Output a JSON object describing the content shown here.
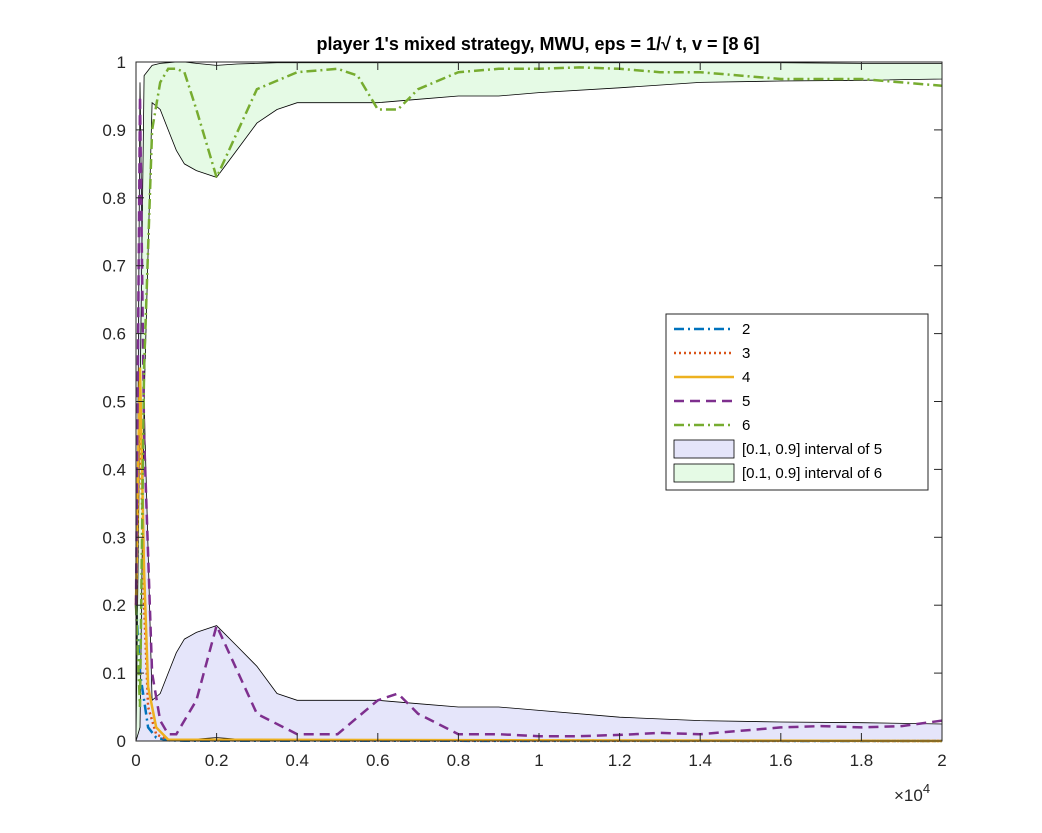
{
  "chart_data": {
    "type": "line",
    "title": "player 1's mixed strategy, MWU, eps = 1/√ t, v = [8  6]",
    "xlabel": "",
    "ylabel": "",
    "x_multiplier_label": "×10",
    "x_multiplier_exponent": "4",
    "xlim": [
      0,
      2
    ],
    "ylim": [
      0,
      1
    ],
    "xticks": [
      "0",
      "0.2",
      "0.4",
      "0.6",
      "0.8",
      "1",
      "1.2",
      "1.4",
      "1.6",
      "1.8",
      "2"
    ],
    "yticks": [
      "0",
      "0.1",
      "0.2",
      "0.3",
      "0.4",
      "0.5",
      "0.6",
      "0.7",
      "0.8",
      "0.9",
      "1"
    ],
    "legend_placement": "right",
    "legend": [
      {
        "label": "2",
        "style": "dash-dot",
        "color": "#0072BD"
      },
      {
        "label": "3",
        "style": "dotted",
        "color": "#D95319"
      },
      {
        "label": "4",
        "style": "solid",
        "color": "#EDB120"
      },
      {
        "label": "5",
        "style": "dashed",
        "color": "#7E2F8E"
      },
      {
        "label": "6",
        "style": "dash-dot",
        "color": "#77AC30"
      },
      {
        "label": "[0.1, 0.9] interval of 5",
        "style": "band",
        "color": "#E5E5FA"
      },
      {
        "label": "[0.1, 0.9] interval of 6",
        "style": "band",
        "color": "#E5FAE5"
      }
    ],
    "series": [
      {
        "label": "2",
        "color": "#0072BD",
        "x": [
          0,
          0.005,
          0.01,
          0.02,
          0.03,
          0.05,
          0.08,
          0.12,
          2.0
        ],
        "y": [
          0.2,
          0.15,
          0.1,
          0.06,
          0.02,
          0.005,
          0.001,
          0.0005,
          0.0
        ]
      },
      {
        "label": "3",
        "color": "#D95319",
        "x": [
          0,
          0.005,
          0.01,
          0.02,
          0.03,
          0.05,
          0.08,
          2.0
        ],
        "y": [
          0.2,
          0.35,
          0.5,
          0.2,
          0.05,
          0.01,
          0.001,
          0.0
        ]
      },
      {
        "label": "4",
        "color": "#EDB120",
        "x": [
          0,
          0.005,
          0.01,
          0.02,
          0.03,
          0.05,
          0.08,
          2.0
        ],
        "y": [
          0.2,
          0.4,
          0.55,
          0.25,
          0.08,
          0.02,
          0.002,
          0.0
        ]
      },
      {
        "label": "5",
        "color": "#7E2F8E",
        "x": [
          0,
          0.01,
          0.02,
          0.04,
          0.06,
          0.08,
          0.1,
          0.15,
          0.2,
          0.3,
          0.4,
          0.5,
          0.6,
          0.65,
          0.7,
          0.8,
          0.9,
          1.0,
          1.1,
          1.2,
          1.3,
          1.4,
          1.5,
          1.6,
          1.7,
          1.8,
          1.9,
          2.0
        ],
        "y": [
          0.2,
          0.95,
          0.45,
          0.1,
          0.03,
          0.01,
          0.01,
          0.06,
          0.17,
          0.04,
          0.01,
          0.01,
          0.06,
          0.07,
          0.04,
          0.01,
          0.01,
          0.007,
          0.007,
          0.009,
          0.012,
          0.01,
          0.015,
          0.02,
          0.022,
          0.02,
          0.022,
          0.03
        ]
      },
      {
        "label": "6",
        "color": "#77AC30",
        "x": [
          0,
          0.01,
          0.02,
          0.04,
          0.06,
          0.08,
          0.1,
          0.12,
          0.15,
          0.2,
          0.3,
          0.4,
          0.5,
          0.55,
          0.6,
          0.65,
          0.7,
          0.8,
          0.9,
          1.0,
          1.1,
          1.2,
          1.3,
          1.4,
          1.5,
          1.6,
          1.7,
          1.8,
          1.9,
          2.0
        ],
        "y": [
          0.2,
          0.05,
          0.55,
          0.9,
          0.97,
          0.99,
          0.99,
          0.985,
          0.93,
          0.83,
          0.96,
          0.985,
          0.99,
          0.98,
          0.93,
          0.93,
          0.96,
          0.985,
          0.99,
          0.99,
          0.992,
          0.99,
          0.985,
          0.985,
          0.98,
          0.975,
          0.975,
          0.975,
          0.97,
          0.965
        ]
      }
    ],
    "bands": [
      {
        "label": "[0.1, 0.9] interval of 5",
        "color": "#E5E5FA",
        "x": [
          0,
          0.01,
          0.02,
          0.04,
          0.06,
          0.08,
          0.1,
          0.12,
          0.15,
          0.2,
          0.25,
          0.3,
          0.35,
          0.4,
          0.5,
          0.6,
          0.7,
          0.8,
          0.9,
          1.0,
          1.2,
          1.4,
          1.6,
          1.8,
          2.0
        ],
        "lower": [
          0.0,
          0.0,
          0.0,
          0.0,
          0.0,
          0.0,
          0.001,
          0.002,
          0.003,
          0.005,
          0.003,
          0.002,
          0.001,
          0.001,
          0.001,
          0.001,
          0.001,
          0.001,
          0.001,
          0.001,
          0.001,
          0.001,
          0.001,
          0.001,
          0.001
        ],
        "upper": [
          0.0,
          0.97,
          0.5,
          0.06,
          0.07,
          0.1,
          0.13,
          0.15,
          0.16,
          0.17,
          0.14,
          0.11,
          0.07,
          0.06,
          0.06,
          0.06,
          0.055,
          0.05,
          0.05,
          0.045,
          0.035,
          0.03,
          0.028,
          0.027,
          0.025
        ]
      },
      {
        "label": "[0.1, 0.9] interval of 6",
        "color": "#E5FAE5",
        "x": [
          0,
          0.01,
          0.02,
          0.04,
          0.06,
          0.08,
          0.1,
          0.12,
          0.15,
          0.2,
          0.25,
          0.3,
          0.35,
          0.4,
          0.5,
          0.6,
          0.7,
          0.8,
          0.9,
          1.0,
          1.2,
          1.4,
          1.6,
          1.8,
          2.0
        ],
        "lower": [
          0.0,
          0.02,
          0.5,
          0.94,
          0.93,
          0.9,
          0.87,
          0.85,
          0.84,
          0.83,
          0.87,
          0.91,
          0.93,
          0.94,
          0.94,
          0.94,
          0.945,
          0.95,
          0.95,
          0.955,
          0.962,
          0.97,
          0.972,
          0.973,
          0.975
        ],
        "upper": [
          0.0,
          0.5,
          0.98,
          0.995,
          0.998,
          0.999,
          1.0,
          1.0,
          0.998,
          0.995,
          0.997,
          0.998,
          0.999,
          0.999,
          0.999,
          0.999,
          0.999,
          0.999,
          0.999,
          0.999,
          0.999,
          0.999,
          0.999,
          0.998,
          0.998
        ]
      }
    ]
  }
}
